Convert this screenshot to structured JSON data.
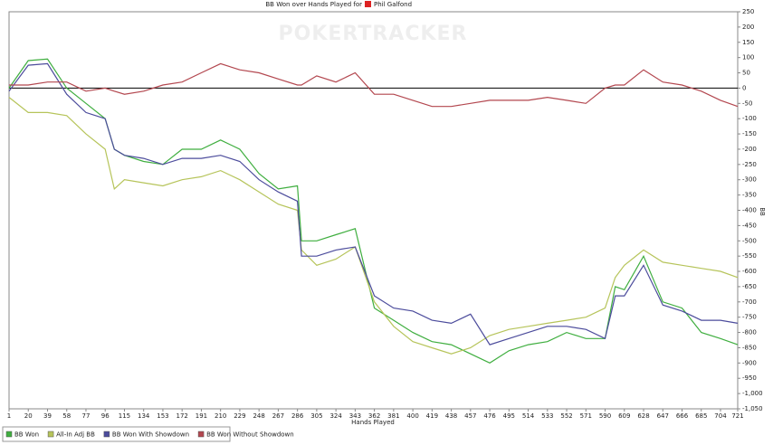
{
  "chart_data": {
    "type": "line",
    "title": "BB Won over Hands Played for",
    "player": "Phil Galfond",
    "watermark": "POKERTRACKER",
    "x_label": "Hands Played",
    "y_label": "BB",
    "x": [
      1,
      20,
      39,
      58,
      77,
      96,
      105,
      115,
      134,
      153,
      172,
      191,
      210,
      229,
      248,
      267,
      286,
      290,
      305,
      324,
      343,
      362,
      381,
      400,
      419,
      438,
      457,
      476,
      495,
      514,
      533,
      552,
      571,
      590,
      600,
      609,
      628,
      647,
      666,
      685,
      704,
      721
    ],
    "xlim": [
      1,
      721
    ],
    "xticks": [
      1,
      20,
      39,
      58,
      77,
      96,
      115,
      134,
      153,
      172,
      191,
      210,
      229,
      248,
      267,
      286,
      305,
      324,
      343,
      362,
      381,
      400,
      419,
      438,
      457,
      476,
      495,
      514,
      533,
      552,
      571,
      590,
      609,
      628,
      647,
      666,
      685,
      704,
      721
    ],
    "ylim": [
      -1050,
      250
    ],
    "yticks": [
      {
        "value": -1050,
        "label": "-1,050"
      },
      {
        "value": -1000,
        "label": "-1,000"
      },
      -950,
      -900,
      -850,
      -800,
      -750,
      -700,
      -650,
      -600,
      -550,
      -500,
      -450,
      -400,
      -350,
      -300,
      -250,
      -200,
      -150,
      -100,
      -50,
      0,
      50,
      100,
      150,
      200,
      250
    ],
    "series": [
      {
        "name": "BB Won",
        "color": "#3fae3f",
        "values": [
          0,
          90,
          95,
          0,
          -50,
          -100,
          -200,
          -220,
          -240,
          -250,
          -200,
          -200,
          -170,
          -200,
          -280,
          -330,
          -320,
          -500,
          -500,
          -480,
          -460,
          -720,
          -760,
          -800,
          -830,
          -840,
          -870,
          -900,
          -860,
          -840,
          -830,
          -800,
          -820,
          -820,
          -650,
          -660,
          -550,
          -700,
          -720,
          -800,
          -820,
          -840
        ]
      },
      {
        "name": "All-In Adj BB",
        "color": "#b6c45a",
        "values": [
          -30,
          -80,
          -80,
          -90,
          -150,
          -200,
          -330,
          -300,
          -310,
          -320,
          -300,
          -290,
          -270,
          -300,
          -340,
          -380,
          -400,
          -530,
          -580,
          -560,
          -520,
          -700,
          -780,
          -830,
          -850,
          -870,
          -850,
          -810,
          -790,
          -780,
          -770,
          -760,
          -750,
          -720,
          -620,
          -580,
          -530,
          -570,
          -580,
          -590,
          -600,
          -620
        ]
      },
      {
        "name": "BB Won With Showdown",
        "color": "#4c4c9c",
        "values": [
          -10,
          75,
          80,
          -20,
          -80,
          -100,
          -200,
          -220,
          -230,
          -250,
          -230,
          -230,
          -220,
          -240,
          -300,
          -340,
          -370,
          -550,
          -550,
          -530,
          -520,
          -680,
          -720,
          -730,
          -760,
          -770,
          -740,
          -840,
          -820,
          -800,
          -780,
          -780,
          -790,
          -820,
          -680,
          -680,
          -580,
          -710,
          -730,
          -760,
          -760,
          -770
        ]
      },
      {
        "name": "BB Won Without Showdown",
        "color": "#b3474f",
        "values": [
          10,
          10,
          20,
          20,
          -10,
          0,
          -10,
          -20,
          -10,
          10,
          20,
          50,
          80,
          60,
          50,
          30,
          10,
          10,
          40,
          20,
          50,
          -20,
          -20,
          -40,
          -60,
          -60,
          -50,
          -40,
          -40,
          -40,
          -30,
          -40,
          -50,
          0,
          10,
          10,
          60,
          20,
          10,
          -10,
          -40,
          -60
        ]
      }
    ]
  }
}
